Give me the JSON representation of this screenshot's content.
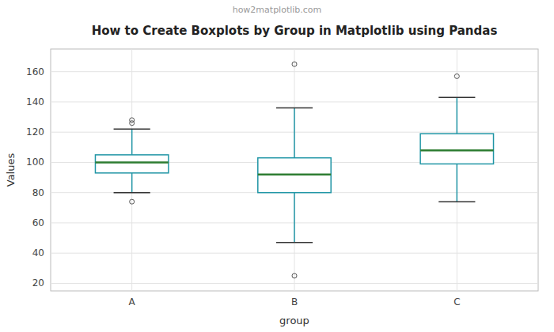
{
  "chart_data": {
    "type": "box",
    "title": "How to Create Boxplots by Group in Matplotlib using Pandas",
    "subtitle": "how2matplotlib.com",
    "xlabel": "group",
    "ylabel": "Values",
    "categories": [
      "A",
      "B",
      "C"
    ],
    "values": [
      {
        "med": 100,
        "q1": 93,
        "q3": 105,
        "whislo": 80,
        "whishi": 122,
        "fliers": [
          74,
          126,
          128
        ]
      },
      {
        "med": 92,
        "q1": 80,
        "q3": 103,
        "whislo": 47,
        "whishi": 136,
        "fliers": [
          25,
          165
        ]
      },
      {
        "med": 108,
        "q1": 99,
        "q3": 119,
        "whislo": 74,
        "whishi": 143,
        "fliers": [
          157
        ]
      }
    ],
    "color": "#2196a6",
    "ylim": [
      15,
      175
    ],
    "yticks": [
      20,
      40,
      60,
      80,
      100,
      120,
      140,
      160
    ],
    "grid": true
  }
}
